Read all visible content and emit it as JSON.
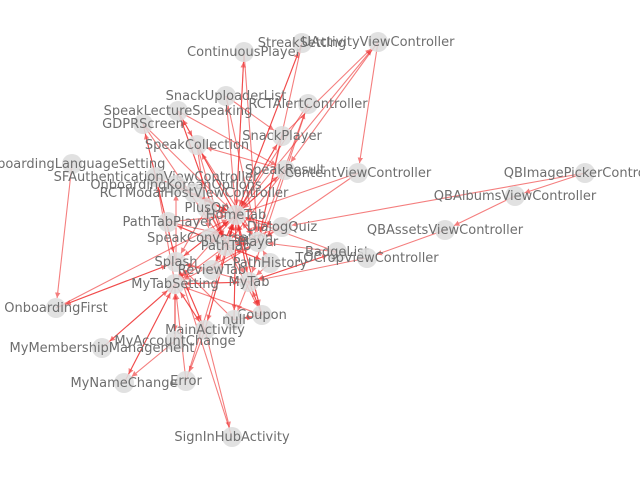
{
  "graph": {
    "edge_color": "#ee2a2a",
    "node_color": "#dcdcdc",
    "label_color": "#6e6e6e",
    "nodes": [
      {
        "id": "ContinuousPlayer",
        "label": "ContinuousPlayer"
      },
      {
        "id": "StreakSetting",
        "label": "StreakSetting"
      },
      {
        "id": "UActivityViewController",
        "label": "UActivityViewController"
      },
      {
        "id": "SnackUploaderList",
        "label": "SnackUploaderList"
      },
      {
        "id": "RCTAlertController",
        "label": "RCTAlertController"
      },
      {
        "id": "SpeakLectureSpeaking",
        "label": "SpeakLectureSpeaking"
      },
      {
        "id": "GDPRScreen",
        "label": "GDPRScreen"
      },
      {
        "id": "SnackPlayer",
        "label": "SnackPlayer"
      },
      {
        "id": "SpeakCollection",
        "label": "SpeakCollection"
      },
      {
        "id": "OnboardingLanguageSetting",
        "label": "OnboardingLanguageSetting"
      },
      {
        "id": "SFAuthenticationViewController",
        "label": "SFAuthenticationViewController"
      },
      {
        "id": "SpeakResult",
        "label": "SpeakResult"
      },
      {
        "id": "OnboardingKoreanOptions",
        "label": "OnboardingKoreanOptions"
      },
      {
        "id": "ContentViewController",
        "label": "ContentViewController"
      },
      {
        "id": "RCTModalHostViewController",
        "label": "RCTModalHostViewController"
      },
      {
        "id": "QBImagePickerController",
        "label": "QBImagePickerController"
      },
      {
        "id": "QBAlbumsViewController",
        "label": "QBAlbumsViewController"
      },
      {
        "id": "PlusOn",
        "label": "PlusOn"
      },
      {
        "id": "HomeTab",
        "label": "HomeTab"
      },
      {
        "id": "PathTabPlayer",
        "label": "PathTabPlayer"
      },
      {
        "id": "DialogQuiz",
        "label": "DialogQuiz"
      },
      {
        "id": "QBAssetsViewController",
        "label": "QBAssetsViewController"
      },
      {
        "id": "SpeakConversation",
        "label": "SpeakConversation"
      },
      {
        "id": "Player",
        "label": "Player"
      },
      {
        "id": "PathTab",
        "label": "PathTab"
      },
      {
        "id": "BadgeList",
        "label": "BadgeList"
      },
      {
        "id": "TOCropViewController",
        "label": "TOCropViewController"
      },
      {
        "id": "Splash",
        "label": "Splash"
      },
      {
        "id": "PathHistory",
        "label": "PathHistory"
      },
      {
        "id": "ReviewTab",
        "label": "ReviewTab"
      },
      {
        "id": "MyTabSetting",
        "label": "MyTabSetting"
      },
      {
        "id": "MyTab",
        "label": "MyTab"
      },
      {
        "id": "OnboardingFirst",
        "label": "OnboardingFirst"
      },
      {
        "id": "Coupon",
        "label": "Coupon"
      },
      {
        "id": "null",
        "label": "null"
      },
      {
        "id": "MainActivity",
        "label": "MainActivity"
      },
      {
        "id": "MyAccountChange",
        "label": "MyAccountChange"
      },
      {
        "id": "MyMembershipManagement",
        "label": "MyMembershipManagement"
      },
      {
        "id": "MyNameChange",
        "label": "MyNameChange"
      },
      {
        "id": "Error",
        "label": "Error"
      },
      {
        "id": "SignInHubActivity",
        "label": "SignInHubActivity"
      }
    ],
    "edges": [
      [
        "ContinuousPlayer",
        "HomeTab"
      ],
      [
        "HomeTab",
        "ContinuousPlayer"
      ],
      [
        "StreakSetting",
        "Player"
      ],
      [
        "HomeTab",
        "StreakSetting"
      ],
      [
        "UActivityViewController",
        "ContentViewController"
      ],
      [
        "SnackPlayer",
        "UActivityViewController"
      ],
      [
        "HomeTab",
        "UActivityViewController"
      ],
      [
        "UActivityViewController",
        "SpeakResult"
      ],
      [
        "SnackUploaderList",
        "Player"
      ],
      [
        "HomeTab",
        "SnackUploaderList"
      ],
      [
        "RCTAlertController",
        "HomeTab"
      ],
      [
        "Player",
        "RCTAlertController"
      ],
      [
        "SpeakLectureSpeaking",
        "PathTab"
      ],
      [
        "PathTab",
        "SpeakLectureSpeaking"
      ],
      [
        "HomeTab",
        "SpeakLectureSpeaking"
      ],
      [
        "GDPRScreen",
        "Splash"
      ],
      [
        "Splash",
        "GDPRScreen"
      ],
      [
        "GDPRScreen",
        "HomeTab"
      ],
      [
        "SnackPlayer",
        "HomeTab"
      ],
      [
        "HomeTab",
        "SnackPlayer"
      ],
      [
        "SnackPlayer",
        "Player"
      ],
      [
        "SpeakCollection",
        "SpeakConversation"
      ],
      [
        "HomeTab",
        "SpeakCollection"
      ],
      [
        "SpeakCollection",
        "PathTab"
      ],
      [
        "OnboardingLanguageSetting",
        "OnboardingFirst"
      ],
      [
        "Splash",
        "OnboardingKoreanOptions"
      ],
      [
        "OnboardingKoreanOptions",
        "HomeTab"
      ],
      [
        "SFAuthenticationViewController",
        "HomeTab"
      ],
      [
        "MyTabSetting",
        "SFAuthenticationViewController"
      ],
      [
        "SpeakResult",
        "HomeTab"
      ],
      [
        "SpeakResult",
        "PathTab"
      ],
      [
        "SpeakConversation",
        "SpeakResult"
      ],
      [
        "ContentViewController",
        "HomeTab"
      ],
      [
        "RCTModalHostViewController",
        "HomeTab"
      ],
      [
        "HomeTab",
        "RCTModalHostViewController"
      ],
      [
        "QBImagePickerController",
        "QBAlbumsViewController"
      ],
      [
        "QBImagePickerController",
        "DialogQuiz"
      ],
      [
        "QBAlbumsViewController",
        "QBAssetsViewController"
      ],
      [
        "QBAssetsViewController",
        "TOCropViewController"
      ],
      [
        "TOCropViewController",
        "MyTab"
      ],
      [
        "PlusOn",
        "HomeTab"
      ],
      [
        "HomeTab",
        "PlusOn"
      ],
      [
        "PlusOn",
        "Coupon"
      ],
      [
        "PlusOn",
        "MyTab"
      ],
      [
        "HomeTab",
        "PathTab"
      ],
      [
        "PathTab",
        "HomeTab"
      ],
      [
        "HomeTab",
        "MyTab"
      ],
      [
        "MyTab",
        "HomeTab"
      ],
      [
        "HomeTab",
        "ReviewTab"
      ],
      [
        "ReviewTab",
        "HomeTab"
      ],
      [
        "PathTabPlayer",
        "PathTab"
      ],
      [
        "PathTab",
        "PathTabPlayer"
      ],
      [
        "PathTabPlayer",
        "Player"
      ],
      [
        "DialogQuiz",
        "HomeTab"
      ],
      [
        "HomeTab",
        "DialogQuiz"
      ],
      [
        "DialogQuiz",
        "PathTab"
      ],
      [
        "Player",
        "HomeTab"
      ],
      [
        "HomeTab",
        "Player"
      ],
      [
        "Player",
        "PathTab"
      ],
      [
        "PathTab",
        "Player"
      ],
      [
        "BadgeList",
        "MyTab"
      ],
      [
        "MyTab",
        "BadgeList"
      ],
      [
        "BadgeList",
        "HomeTab"
      ],
      [
        "Splash",
        "HomeTab"
      ],
      [
        "Splash",
        "MainActivity"
      ],
      [
        "MainActivity",
        "Splash"
      ],
      [
        "Splash",
        "OnboardingFirst"
      ],
      [
        "OnboardingFirst",
        "Splash"
      ],
      [
        "PathHistory",
        "PathTab"
      ],
      [
        "PathTab",
        "PathHistory"
      ],
      [
        "PathHistory",
        "Player"
      ],
      [
        "ReviewTab",
        "Player"
      ],
      [
        "ReviewTab",
        "PathTab"
      ],
      [
        "MyTabSetting",
        "MyTab"
      ],
      [
        "MyTab",
        "MyTabSetting"
      ],
      [
        "MyTabSetting",
        "MyAccountChange"
      ],
      [
        "MyTabSetting",
        "MyMembershipManagement"
      ],
      [
        "MyTabSetting",
        "MyNameChange"
      ],
      [
        "MyTab",
        "Coupon"
      ],
      [
        "Coupon",
        "MyTab"
      ],
      [
        "MyTab",
        "null"
      ],
      [
        "null",
        "HomeTab"
      ],
      [
        "HomeTab",
        "null"
      ],
      [
        "MainActivity",
        "HomeTab"
      ],
      [
        "HomeTab",
        "MainActivity"
      ],
      [
        "MainActivity",
        "SignInHubActivity"
      ],
      [
        "MainActivity",
        "Error"
      ],
      [
        "Error",
        "HomeTab"
      ],
      [
        "MyAccountChange",
        "MyTabSetting"
      ],
      [
        "MyAccountChange",
        "MyNameChange"
      ],
      [
        "MyMembershipManagement",
        "MyTabSetting"
      ],
      [
        "MyNameChange",
        "MyTabSetting"
      ],
      [
        "Coupon",
        "HomeTab"
      ],
      [
        "HomeTab",
        "Coupon"
      ],
      [
        "null",
        "Coupon"
      ],
      [
        "Coupon",
        "null"
      ],
      [
        "SignInHubActivity",
        "Splash"
      ],
      [
        "OnboardingFirst",
        "HomeTab"
      ],
      [
        "SpeakConversation",
        "PathTab"
      ],
      [
        "SpeakConversation",
        "HomeTab"
      ],
      [
        "SpeakLectureSpeaking",
        "SpeakResult"
      ],
      [
        "SpeakLectureSpeaking",
        "SpeakCollection"
      ],
      [
        "ContinuousPlayer",
        "Player"
      ],
      [
        "RCTAlertController",
        "MyTab"
      ],
      [
        "SnackUploaderList",
        "SnackPlayer"
      ],
      [
        "StreakSetting",
        "HomeTab"
      ],
      [
        "SpeakResult",
        "SpeakCollection"
      ],
      [
        "ContentViewController",
        "Player"
      ],
      [
        "PlusOn",
        "Splash"
      ],
      [
        "PathTabPlayer",
        "HomeTab"
      ],
      [
        "DialogQuiz",
        "Player"
      ],
      [
        "ReviewTab",
        "Splash"
      ],
      [
        "MyTab",
        "Splash"
      ],
      [
        "PathHistory",
        "MyTab"
      ],
      [
        "HomeTab",
        "Splash"
      ],
      [
        "HomeTab",
        "MyTabSetting"
      ],
      [
        "Player",
        "MyTabSetting"
      ],
      [
        "PathTab",
        "MyTabSetting"
      ],
      [
        "null",
        "Splash"
      ],
      [
        "MainActivity",
        "MyTabSetting"
      ],
      [
        "MyTabSetting",
        "MainActivity"
      ],
      [
        "Error",
        "MyTabSetting"
      ],
      [
        "Coupon",
        "MyTabSetting"
      ],
      [
        "BadgeList",
        "Player"
      ],
      [
        "GDPRScreen",
        "PathTab"
      ],
      [
        "SpeakCollection",
        "Player"
      ]
    ]
  }
}
